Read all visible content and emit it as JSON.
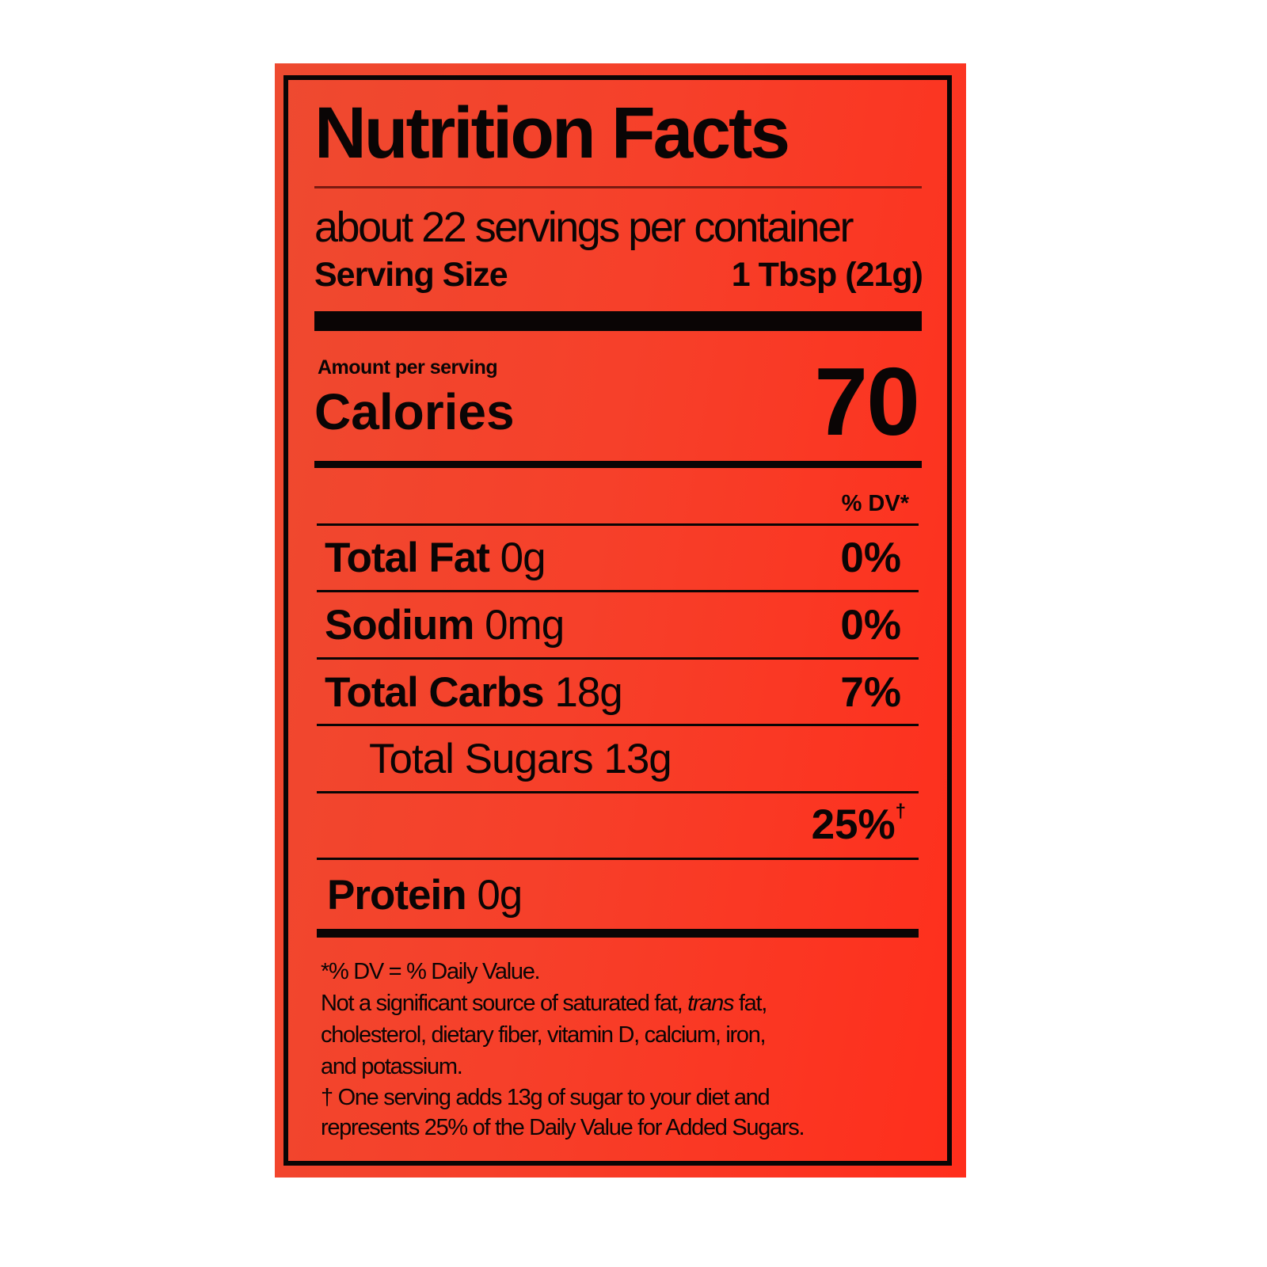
{
  "title": "Nutrition Facts",
  "servings_per_container": "about 22 servings per container",
  "serving_size": {
    "label": "Serving Size",
    "value": "1 Tbsp (21g)"
  },
  "amount_per_serving": "Amount per serving",
  "calories": {
    "label": "Calories",
    "value": "70"
  },
  "dv_header": "% DV*",
  "nutrients": [
    {
      "name": "Total Fat",
      "amount": "0g",
      "dv": "0%"
    },
    {
      "name": "Sodium",
      "amount": "0mg",
      "dv": "0%"
    },
    {
      "name": "Total Carbs",
      "amount": "18g",
      "dv": "7%"
    },
    {
      "name": "Total Sugars",
      "amount": "13g"
    },
    {
      "dv": "25%",
      "mark": "†"
    },
    {
      "name": "Protein",
      "amount": "0g"
    }
  ],
  "footnotes": [
    "*% DV = % Daily Value.",
    "Not a significant source of saturated fat,",
    "trans",
    "fat,",
    "cholesterol, dietary fiber, vitamin D, calcium, iron,",
    "and potassium.",
    "† One serving adds 13g of sugar to your diet and",
    "represents 25% of the Daily Value for Added Sugars."
  ],
  "colors": {
    "label_background": "#f6402a",
    "ink": "#0a0505"
  }
}
